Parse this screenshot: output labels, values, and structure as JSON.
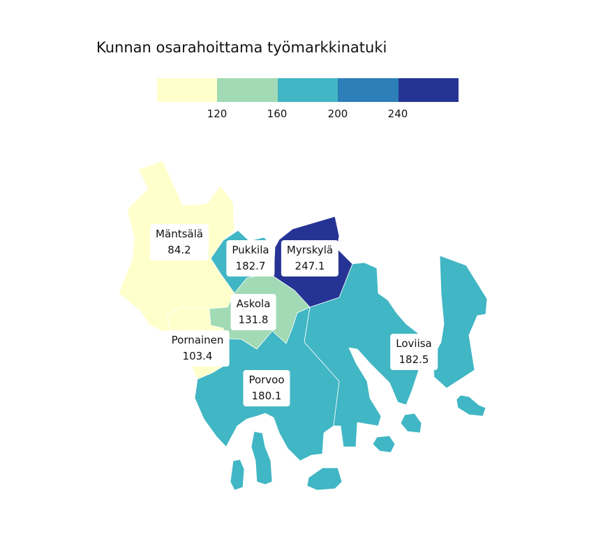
{
  "title": "Kunnan osarahoittama työmarkkinatuki",
  "legend": {
    "colors": [
      "#ffffcc",
      "#a1dab4",
      "#41b6c4",
      "#2c7fb8",
      "#253494"
    ],
    "ticks": [
      "120",
      "160",
      "200",
      "240"
    ]
  },
  "municipalities": [
    {
      "name": "Mäntsälä",
      "value": "84.2",
      "color": "#ffffcc"
    },
    {
      "name": "Pukkila",
      "value": "182.7",
      "color": "#41b6c4"
    },
    {
      "name": "Myrskylä",
      "value": "247.1",
      "color": "#253494"
    },
    {
      "name": "Askola",
      "value": "131.8",
      "color": "#a1dab4"
    },
    {
      "name": "Pornainen",
      "value": "103.4",
      "color": "#ffffcc"
    },
    {
      "name": "Loviisa",
      "value": "182.5",
      "color": "#41b6c4"
    },
    {
      "name": "Porvoo",
      "value": "180.1",
      "color": "#41b6c4"
    }
  ]
}
